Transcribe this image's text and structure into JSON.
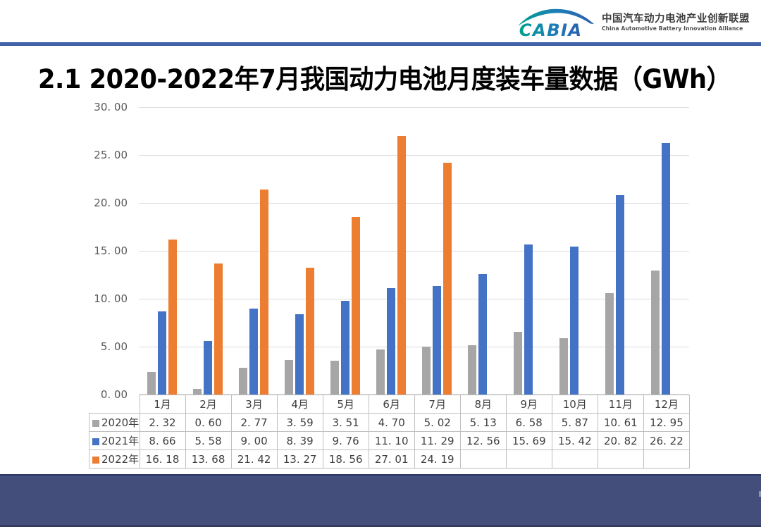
{
  "header": {
    "logo_text": "CABIA",
    "org_name_cn": "中国汽车动力电池产业创新联盟",
    "org_name_en": "China Automotive Battery Innovation Alliance"
  },
  "title": "2.1 2020-2022年7月我国动力电池月度装车量数据（GWh）",
  "colors": {
    "header_rule": "#2F5496",
    "footer_band": "#434E7B",
    "gridline": "#DCDCDC",
    "table_border": "#BFBFBF",
    "axis_text": "#595959",
    "series_2020": "#A6A6A6",
    "series_2021": "#4472C4",
    "series_2022": "#ED7D31"
  },
  "chart_data": {
    "type": "bar",
    "title": "2.1 2020-2022年7月我国动力电池月度装车量数据（GWh）",
    "categories": [
      "1月",
      "2月",
      "3月",
      "4月",
      "5月",
      "6月",
      "7月",
      "8月",
      "9月",
      "10月",
      "11月",
      "12月"
    ],
    "series": [
      {
        "name": "2020年",
        "color": "#A6A6A6",
        "values": [
          2.32,
          0.6,
          2.77,
          3.59,
          3.51,
          4.7,
          5.02,
          5.13,
          6.58,
          5.87,
          10.61,
          12.95
        ]
      },
      {
        "name": "2021年",
        "color": "#4472C4",
        "values": [
          8.66,
          5.58,
          9.0,
          8.39,
          9.76,
          11.1,
          11.29,
          12.56,
          15.69,
          15.42,
          20.82,
          26.22
        ]
      },
      {
        "name": "2022年",
        "color": "#ED7D31",
        "values": [
          16.18,
          13.68,
          21.42,
          13.27,
          18.56,
          27.01,
          24.19,
          null,
          null,
          null,
          null,
          null
        ]
      }
    ],
    "xlabel": "",
    "ylabel": "",
    "ylim": [
      0,
      30
    ],
    "y_ticks": [
      0,
      5,
      10,
      15,
      20,
      25,
      30
    ],
    "y_tick_format": "0.00",
    "grid": true,
    "legend_position": "data-table-row-labels",
    "data_table_shown": true
  }
}
